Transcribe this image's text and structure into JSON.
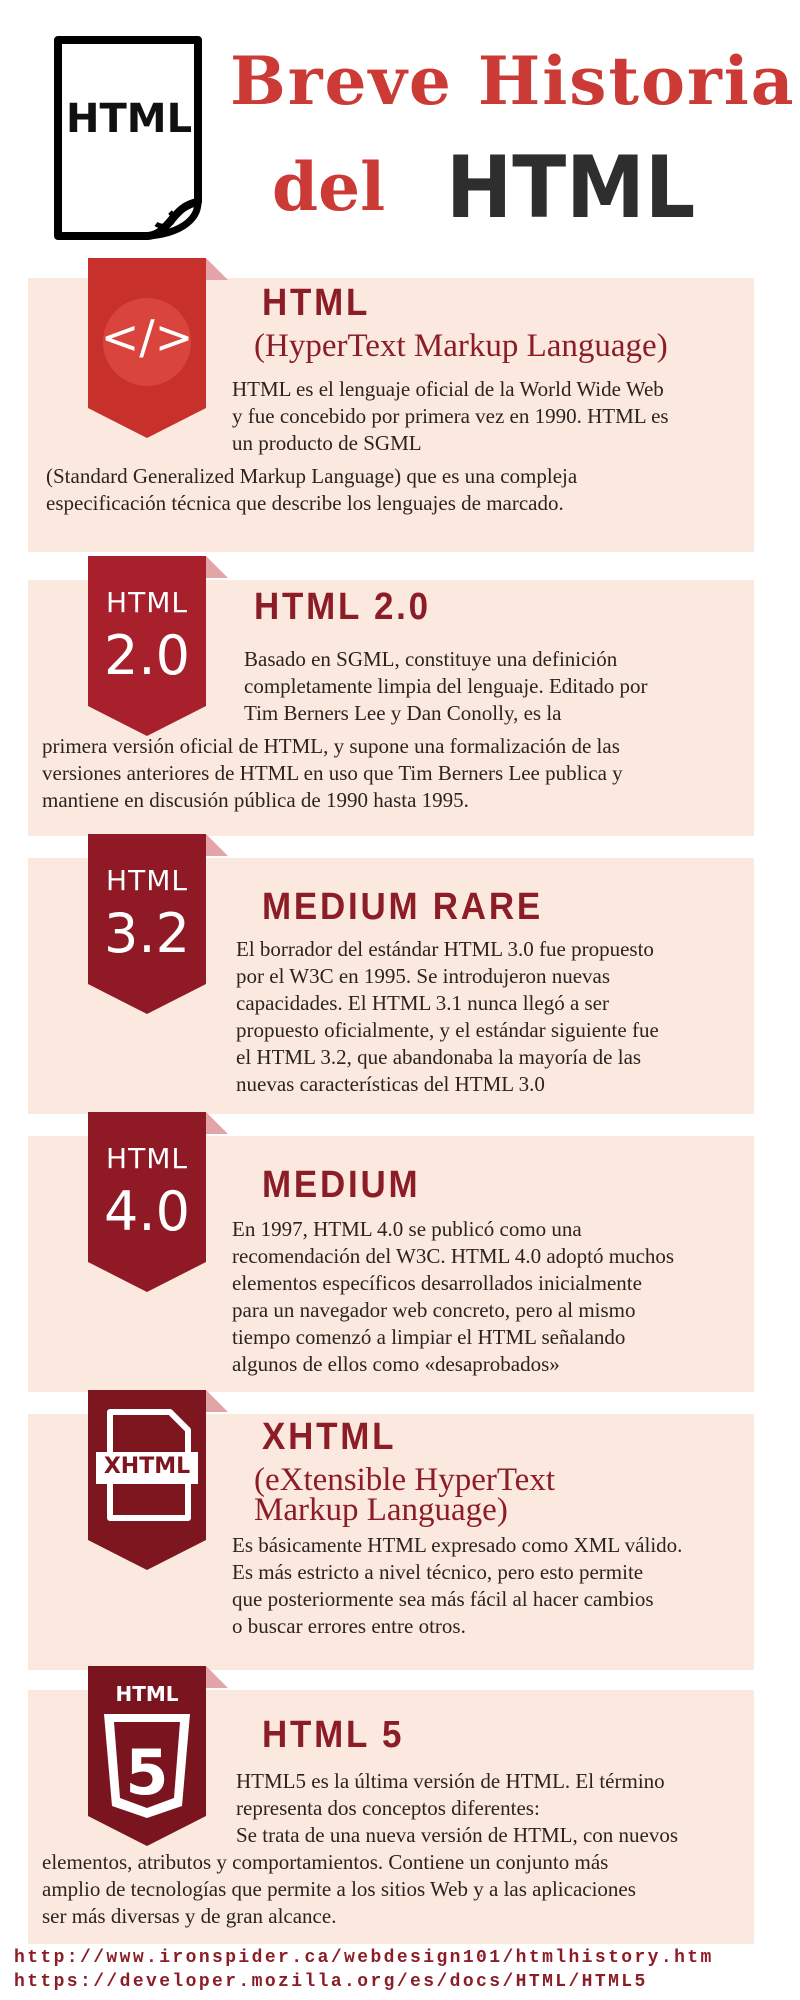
{
  "header": {
    "logo_text": "HTML",
    "title_line1": "Breve Historia",
    "title_line2_a": "del",
    "title_line2_b": "HTML"
  },
  "sections": [
    {
      "icon": "code-icon",
      "heading": "HTML",
      "subheading": [
        "(HyperText Markup Language)"
      ],
      "text": [
        "HTML  es el lenguaje oficial de la World Wide Web",
        "y fue concebido por primera vez en 1990. HTML es",
        "un producto de SGML",
        "(Standard Generalized Markup Language) que es una compleja",
        "especificación técnica que describe los lenguajes de marcado."
      ]
    },
    {
      "badge_top": "HTML",
      "badge_bottom": "2.0",
      "heading": "HTML 2.0",
      "text": [
        "Basado en SGML, constituye una definición",
        "completamente limpia del lenguaje. Editado por",
        "Tim Berners Lee y Dan Conolly, es la",
        "primera versión oficial de HTML, y supone una formalización de las",
        "versiones anteriores de HTML en uso que Tim Berners Lee publica y",
        "mantiene en discusión pública  de 1990 hasta 1995."
      ]
    },
    {
      "badge_top": "HTML",
      "badge_bottom": "3.2",
      "heading": "MEDIUM RARE",
      "text": [
        "El borrador del estándar HTML 3.0 fue propuesto",
        "por el W3C en 1995. Se introdujeron nuevas",
        "capacidades. El HTML 3.1 nunca llegó a ser",
        "propuesto oficialmente, y el estándar siguiente fue",
        "el HTML 3.2, que abandonaba la mayoría de las",
        "nuevas características del HTML 3.0"
      ]
    },
    {
      "badge_top": "HTML",
      "badge_bottom": "4.0",
      "heading": "MEDIUM",
      "text": [
        "En 1997, HTML 4.0 se publicó como una",
        "recomendación del W3C. HTML 4.0 adoptó muchos",
        "elementos específicos desarrollados inicialmente",
        "para un navegador web concreto, pero al mismo",
        "tiempo comenzó a limpiar el HTML señalando",
        "algunos de ellos como «desaprobados»"
      ]
    },
    {
      "icon": "xhtml-file-icon",
      "icon_label": "XHTML",
      "heading": "XHTML",
      "subheading": [
        "(eXtensible HyperText",
        "Markup Language)"
      ],
      "text": [
        "Es básicamente HTML expresado como XML válido.",
        "Es más estricto a nivel técnico, pero esto permite",
        "que posteriormente sea más fácil al hacer cambios",
        "o buscar errores entre otros."
      ]
    },
    {
      "icon": "html5-shield-icon",
      "icon_label": "HTML",
      "heading": "HTML 5",
      "text": [
        "HTML5  es la última versión de HTML. El término",
        "representa dos conceptos diferentes:",
        "Se trata de una nueva versión de HTML, con nuevos",
        "elementos, atributos y comportamientos. Contiene un conjunto más",
        "amplio de tecnologías que permite a los sitios Web y a las aplicaciones",
        "ser más diversas y de gran alcance."
      ]
    }
  ],
  "links": [
    "http://www.ironspider.ca/webdesign101/htmlhistory.htm",
    "https://developer.mozilla.org/es/docs/HTML/HTML5"
  ],
  "colors": {
    "title_red": "#cc3a36",
    "heading_maroon": "#8c1d26",
    "panel_bg": "#fbe9df",
    "ribbon_1": "#c8302c",
    "ribbon_2": "#a8202c",
    "ribbon_3": "#8f1a26",
    "ribbon_4": "#8f1a26",
    "ribbon_5": "#7e1620",
    "ribbon_6": "#7a1520"
  }
}
